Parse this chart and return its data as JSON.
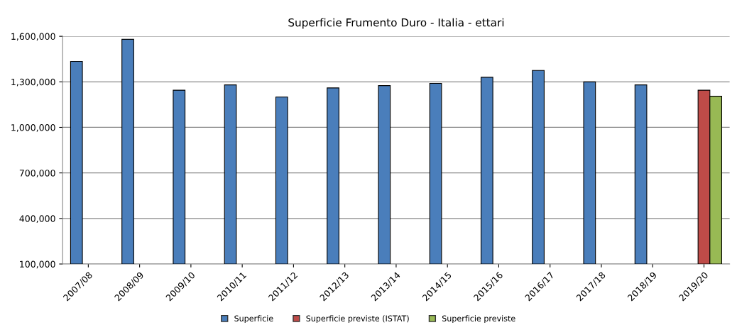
{
  "chart_data": {
    "type": "bar",
    "title": "Superficie Frumento Duro - Italia - ettari",
    "categories": [
      "2007/08",
      "2008/09",
      "2009/10",
      "2010/11",
      "2011/12",
      "2012/13",
      "2013/14",
      "2014/15",
      "2015/16",
      "2016/17",
      "2017/18",
      "2018/19",
      "2019/20"
    ],
    "series": [
      {
        "name": "Superficie",
        "color": "#4a7ebb",
        "values": [
          1435000,
          1580000,
          1245000,
          1280000,
          1200000,
          1260000,
          1275000,
          1290000,
          1330000,
          1375000,
          1300000,
          1280000,
          null
        ]
      },
      {
        "name": "Superficie previste (ISTAT)",
        "color": "#be4b48",
        "values": [
          null,
          null,
          null,
          null,
          null,
          null,
          null,
          null,
          null,
          null,
          null,
          null,
          1245000
        ]
      },
      {
        "name": "Superficie previste",
        "color": "#98b954",
        "values": [
          null,
          null,
          null,
          null,
          null,
          null,
          null,
          null,
          null,
          null,
          null,
          null,
          1205000
        ]
      }
    ],
    "ylim": [
      100000,
      1600000
    ],
    "yticks": [
      {
        "value": 100000,
        "label": "100,000"
      },
      {
        "value": 400000,
        "label": "400,000"
      },
      {
        "value": 700000,
        "label": "700,000"
      },
      {
        "value": 1000000,
        "label": "1,000,000"
      },
      {
        "value": 1300000,
        "label": "1,300,000"
      },
      {
        "value": 1600000,
        "label": "1,600,000"
      }
    ],
    "grid": "y",
    "legend": "bottom"
  }
}
